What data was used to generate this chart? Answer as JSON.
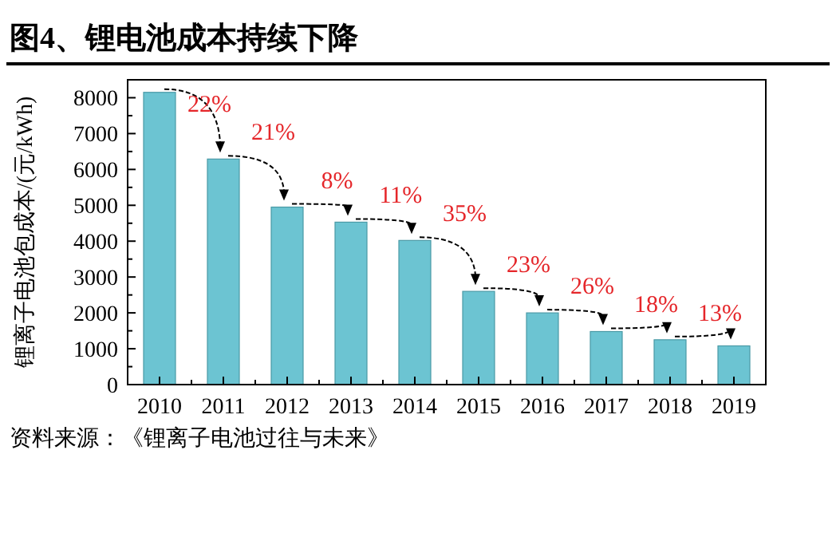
{
  "chart_data": {
    "type": "bar",
    "title": "图4、锂电池成本持续下降",
    "ylabel": "锂离子电池包成本/(元/kWh)",
    "categories": [
      "2010",
      "2011",
      "2012",
      "2013",
      "2014",
      "2015",
      "2016",
      "2017",
      "2018",
      "2019"
    ],
    "values": [
      8150,
      6290,
      4950,
      4530,
      4020,
      2600,
      2000,
      1480,
      1250,
      1080
    ],
    "color": "#6cc4d2",
    "ylim": [
      0,
      8500
    ],
    "yticks": [
      0,
      1000,
      2000,
      3000,
      4000,
      5000,
      6000,
      7000,
      8000
    ],
    "annotations": [
      "22%",
      "21%",
      "8%",
      "11%",
      "35%",
      "23%",
      "26%",
      "18%",
      "13%",
      "资料来源：《锂离子电池过往与未来》"
    ]
  }
}
